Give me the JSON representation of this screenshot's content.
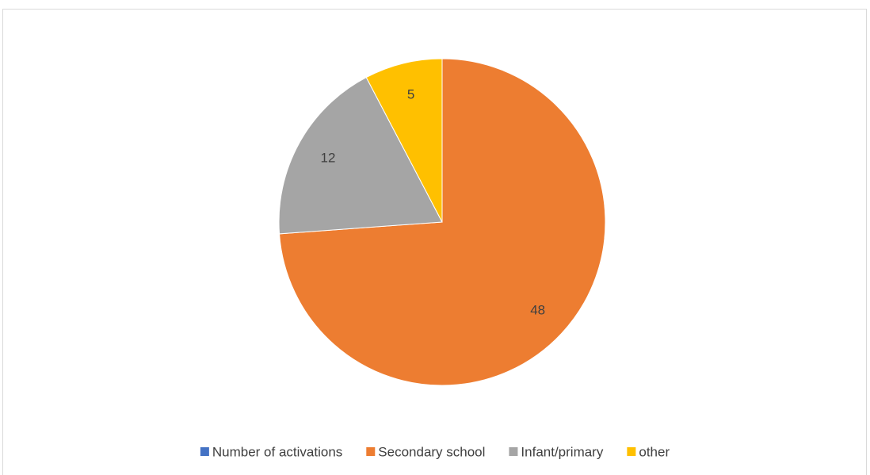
{
  "chart_data": {
    "type": "pie",
    "categories": [
      "Number of activations",
      "Secondary school",
      "Infant/primary",
      "other"
    ],
    "values": [
      null,
      48,
      12,
      5
    ],
    "colors": [
      "#4472c4",
      "#ed7d31",
      "#a5a5a5",
      "#ffc000"
    ],
    "legend": "bottom"
  }
}
